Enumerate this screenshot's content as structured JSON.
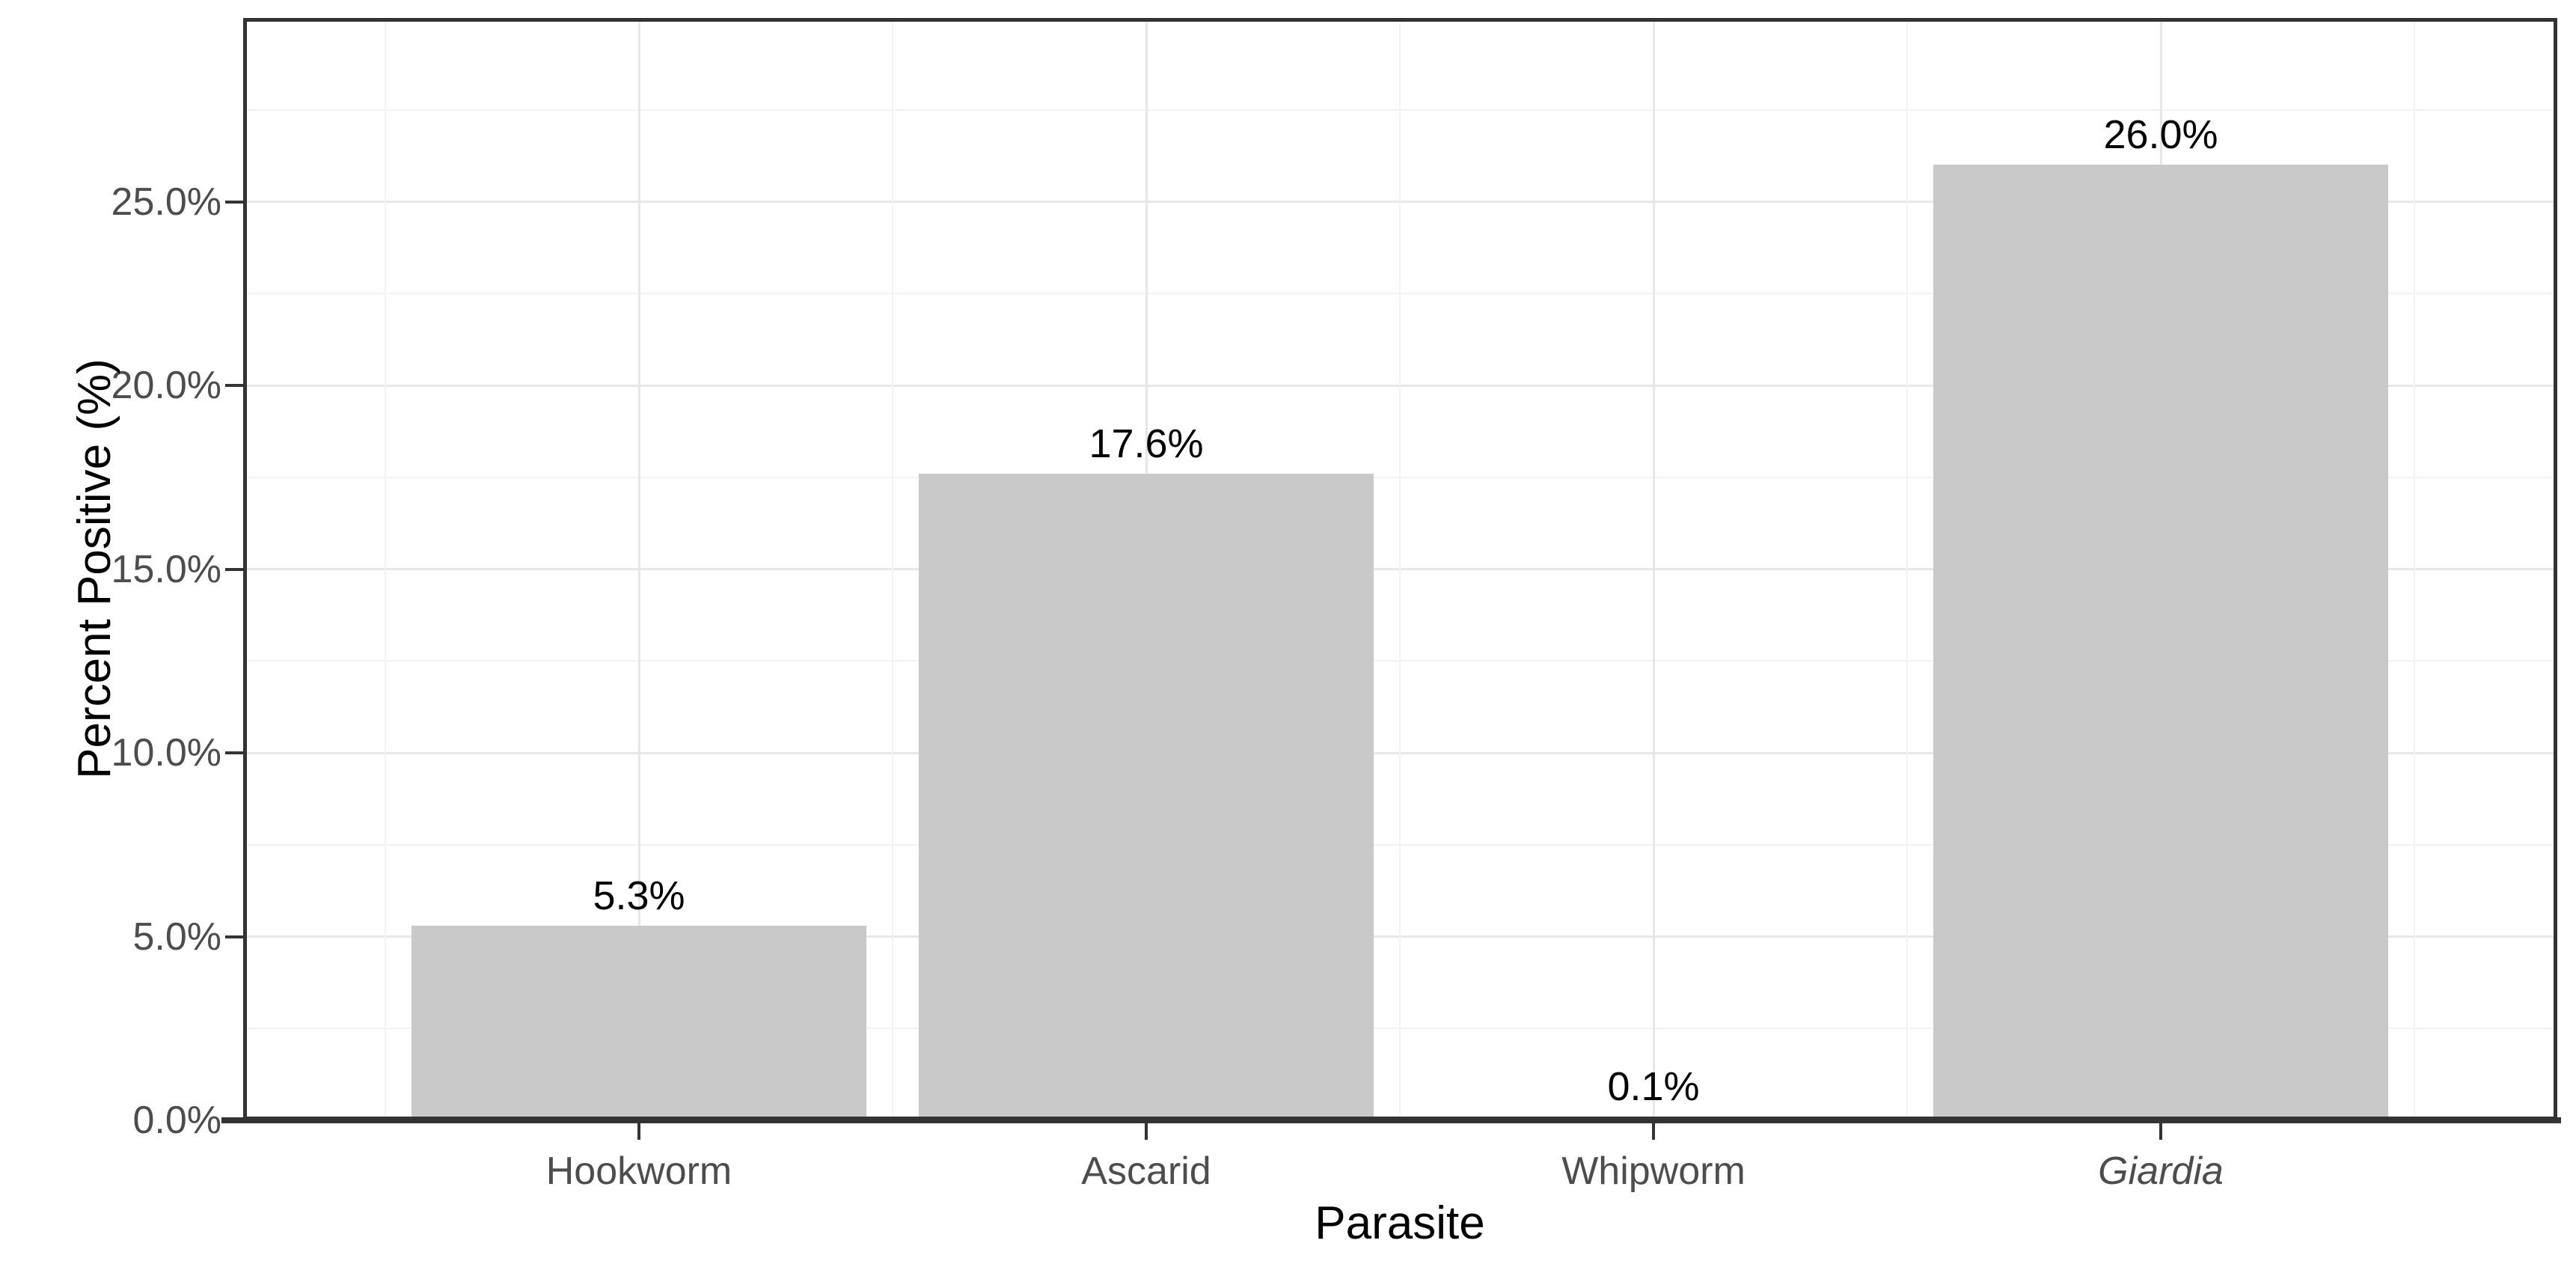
{
  "chart_data": {
    "type": "bar",
    "title": "",
    "xlabel": "Parasite",
    "ylabel": "Percent Positive (%)",
    "categories": [
      "Hookworm",
      "Ascarid",
      "Whipworm",
      "Giardia"
    ],
    "italic_categories": [
      false,
      false,
      false,
      true
    ],
    "values": [
      5.3,
      17.6,
      0.1,
      26.0
    ],
    "bar_labels": [
      "5.3%",
      "17.6%",
      "0.1%",
      "26.0%"
    ],
    "y_ticks": [
      {
        "value": 0,
        "label": "0.0%"
      },
      {
        "value": 5,
        "label": "5.0%"
      },
      {
        "value": 10,
        "label": "10.0%"
      },
      {
        "value": 15,
        "label": "15.0%"
      },
      {
        "value": 20,
        "label": "20.0%"
      },
      {
        "value": 25,
        "label": "25.0%"
      }
    ],
    "y_minor_ticks": [
      2.5,
      7.5,
      12.5,
      17.5,
      22.5,
      27.5
    ],
    "ylim": [
      0,
      30
    ],
    "grid": "major+minor",
    "legend": "none",
    "colors": {
      "bar_fill": "#C9C9C9",
      "panel_border": "#333333",
      "axis_line": "#333333",
      "tick_mark": "#333333",
      "grid_major": "#E7E7E7",
      "grid_minor": "#F3F3F3",
      "tick_text": "#4D4D4D",
      "title_text": "#000000",
      "background": "#FFFFFF"
    }
  }
}
